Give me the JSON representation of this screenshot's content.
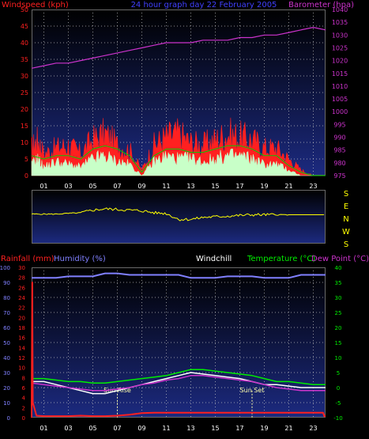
{
  "header": {
    "left_label": "Windspeed (kph)",
    "center_label": "24 hour graph day  22 February 2005",
    "right_label": "Barometer (hpa)"
  },
  "wind_dir_labels": [
    "S",
    "E",
    "N",
    "W",
    "S"
  ],
  "lower_header": {
    "rain_label": "Rainfall (mm)",
    "humidity_label": "Humidity (%)",
    "windchill_label": "Windchill",
    "temp_label": "Temperature (°C)",
    "dew_label": "Dew Point (°C)"
  },
  "annotations": {
    "sunrise": "Sun Rise",
    "sunset": "Sun Set",
    "sunrise_hour": 7,
    "sunset_hour": 18
  },
  "colors": {
    "panel_top": "#000000",
    "panel_bottom": "#1c2a80",
    "grid": "#c8c8c8",
    "wind_avg": "#ff2020",
    "wind_gust": "#c8ffc8",
    "wind_green": "#00cc00",
    "barometer": "#cc33cc",
    "direction": "#ffff00",
    "rain": "#ff2020",
    "humidity": "#8080ff",
    "temperature": "#00ee00",
    "dewpoint": "#cc33cc",
    "windchill": "#ffffff"
  },
  "chart_data": [
    {
      "type": "line",
      "name": "wind-barometer",
      "x_ticks": [
        "01",
        "03",
        "05",
        "07",
        "09",
        "11",
        "13",
        "15",
        "17",
        "19",
        "21",
        "23"
      ],
      "xlim": [
        0,
        24
      ],
      "y_left": {
        "ticks": [
          0,
          5,
          10,
          15,
          20,
          25,
          30,
          35,
          40,
          45,
          50
        ],
        "ylim": [
          0,
          50
        ]
      },
      "y_right": {
        "ticks": [
          975,
          980,
          985,
          990,
          995,
          1000,
          1005,
          1010,
          1015,
          1020,
          1025,
          1030,
          1035,
          1040
        ],
        "ylim": [
          975,
          1040
        ]
      },
      "barometer": {
        "x": [
          0,
          1,
          2,
          3,
          4,
          5,
          6,
          7,
          8,
          9,
          10,
          11,
          12,
          13,
          14,
          15,
          16,
          17,
          18,
          19,
          20,
          21,
          22,
          23,
          24
        ],
        "y": [
          1017,
          1018,
          1019,
          1019,
          1020,
          1021,
          1022,
          1023,
          1024,
          1025,
          1026,
          1027,
          1027,
          1027,
          1028,
          1028,
          1028,
          1029,
          1029,
          1030,
          1030,
          1031,
          1032,
          1033,
          1032
        ]
      },
      "wind_avg_envelope": {
        "x": [
          0,
          0.5,
          1,
          2,
          3,
          4,
          5,
          6,
          7,
          8,
          9,
          10,
          11,
          12,
          13,
          14,
          15,
          16,
          17,
          18,
          19,
          20,
          21,
          22,
          23,
          24
        ],
        "y": [
          10,
          13,
          8,
          10,
          11,
          8,
          13,
          15,
          11,
          9,
          2,
          11,
          14,
          15,
          12,
          11,
          13,
          15,
          14,
          13,
          10,
          10,
          6,
          2,
          0,
          0
        ]
      },
      "wind_gust_envelope": {
        "x": [
          0,
          0.5,
          1,
          2,
          3,
          4,
          5,
          6,
          7,
          8,
          9,
          10,
          11,
          12,
          13,
          14,
          15,
          16,
          17,
          18,
          19,
          20,
          21,
          22,
          23,
          24
        ],
        "y": [
          4,
          6,
          3,
          5,
          4,
          3,
          6,
          7,
          5,
          4,
          0,
          5,
          7,
          6,
          6,
          5,
          6,
          7,
          7,
          6,
          4,
          4,
          2,
          0,
          0,
          0
        ]
      },
      "wind_avg_line": {
        "x": [
          0,
          1,
          2,
          3,
          4,
          5,
          6,
          7,
          8,
          9,
          10,
          11,
          12,
          13,
          14,
          15,
          16,
          17,
          18,
          19,
          20,
          21,
          22,
          23,
          24
        ],
        "y": [
          6,
          5,
          6,
          6,
          5,
          8,
          9,
          8,
          6,
          1,
          6,
          8,
          8,
          7,
          7,
          8,
          9,
          9,
          8,
          6,
          6,
          3,
          1,
          0,
          0
        ]
      }
    },
    {
      "type": "line",
      "name": "wind-direction",
      "y_ticks": [
        "S",
        "E",
        "N",
        "W",
        "S"
      ],
      "ylim": [
        0,
        360
      ],
      "x": [
        0,
        1,
        2,
        3,
        4,
        5,
        6,
        7,
        8,
        9,
        10,
        11,
        12,
        13,
        14,
        15,
        16,
        17,
        18,
        19,
        20,
        21,
        22,
        23,
        24
      ],
      "y": [
        200,
        200,
        200,
        205,
        210,
        230,
        240,
        235,
        230,
        225,
        210,
        205,
        160,
        160,
        175,
        180,
        185,
        190,
        195,
        195,
        195,
        195,
        195,
        195,
        195
      ]
    },
    {
      "type": "line",
      "name": "temperature-humidity-rain",
      "x_ticks": [
        "01",
        "03",
        "05",
        "07",
        "09",
        "11",
        "13",
        "15",
        "17",
        "19",
        "21",
        "23"
      ],
      "xlim": [
        0,
        24
      ],
      "y_humidity": {
        "ticks": [
          0,
          10,
          20,
          30,
          40,
          50,
          60,
          70,
          80,
          90,
          100
        ],
        "ylim": [
          0,
          100
        ]
      },
      "y_rain": {
        "ticks": [
          0,
          2,
          4,
          6,
          8,
          10,
          12,
          14,
          16,
          18,
          20,
          22,
          24,
          26,
          28,
          30
        ],
        "ylim": [
          0,
          30
        ]
      },
      "y_temp": {
        "ticks": [
          -10,
          -5,
          0,
          5,
          10,
          15,
          20,
          25,
          30,
          35,
          40
        ],
        "ylim": [
          -10,
          40
        ]
      },
      "humidity": {
        "x": [
          0,
          1,
          2,
          3,
          4,
          5,
          6,
          7,
          8,
          9,
          10,
          11,
          12,
          13,
          14,
          15,
          16,
          17,
          18,
          19,
          20,
          21,
          22,
          23,
          24
        ],
        "y": [
          93,
          93,
          93,
          94,
          94,
          94,
          96,
          96,
          95,
          95,
          95,
          95,
          95,
          93,
          93,
          93,
          94,
          94,
          94,
          93,
          93,
          93,
          95,
          95,
          95
        ]
      },
      "rainfall": {
        "x": [
          0,
          0.05,
          0.1,
          0.4,
          1,
          2,
          3,
          4,
          5,
          6,
          7,
          8,
          9,
          10,
          11,
          12,
          13,
          14,
          15,
          16,
          17,
          18,
          19,
          20,
          21,
          22,
          23,
          23.8,
          23.9,
          24
        ],
        "y": [
          0,
          27,
          3,
          0.4,
          0.3,
          0.3,
          0.3,
          0.4,
          0.3,
          0.3,
          0.4,
          0.6,
          0.9,
          1,
          1,
          1,
          1,
          1,
          1,
          1,
          1,
          1,
          1,
          1,
          1,
          1,
          1,
          1,
          0.3,
          0.3
        ]
      },
      "temperature": {
        "x": [
          0,
          1,
          2,
          3,
          4,
          5,
          6,
          7,
          8,
          9,
          10,
          11,
          12,
          13,
          14,
          15,
          16,
          17,
          18,
          19,
          20,
          21,
          22,
          23,
          24
        ],
        "y": [
          3,
          3,
          2.5,
          2,
          2,
          1.5,
          1.5,
          2,
          2.5,
          3,
          3.5,
          4,
          5,
          6,
          6,
          5.5,
          5,
          4.5,
          4,
          3,
          2,
          2,
          1.5,
          1,
          1
        ]
      },
      "dewpoint": {
        "x": [
          0,
          1,
          2,
          3,
          4,
          5,
          6,
          7,
          8,
          9,
          10,
          11,
          12,
          13,
          14,
          15,
          16,
          17,
          18,
          19,
          20,
          21,
          22,
          23,
          24
        ],
        "y": [
          1.5,
          1,
          0.5,
          0,
          -0.5,
          -1,
          -1,
          -0.5,
          0,
          1,
          1.5,
          2.5,
          3,
          4,
          4,
          3.5,
          3,
          2.5,
          2,
          1,
          0,
          -0.5,
          -1,
          -1,
          -1
        ]
      },
      "windchill": {
        "x": [
          0,
          1,
          2,
          3,
          4,
          5,
          6,
          7,
          8,
          9,
          10,
          11,
          12,
          13,
          14,
          15,
          16,
          17,
          18,
          19,
          20,
          21,
          22,
          23,
          24
        ],
        "y": [
          2,
          2,
          1,
          0,
          -1,
          -2,
          -2,
          -1,
          0,
          1,
          2,
          3,
          4,
          5,
          4.5,
          4,
          3.5,
          3,
          2,
          1,
          1,
          0.5,
          0,
          0,
          0
        ]
      }
    }
  ]
}
